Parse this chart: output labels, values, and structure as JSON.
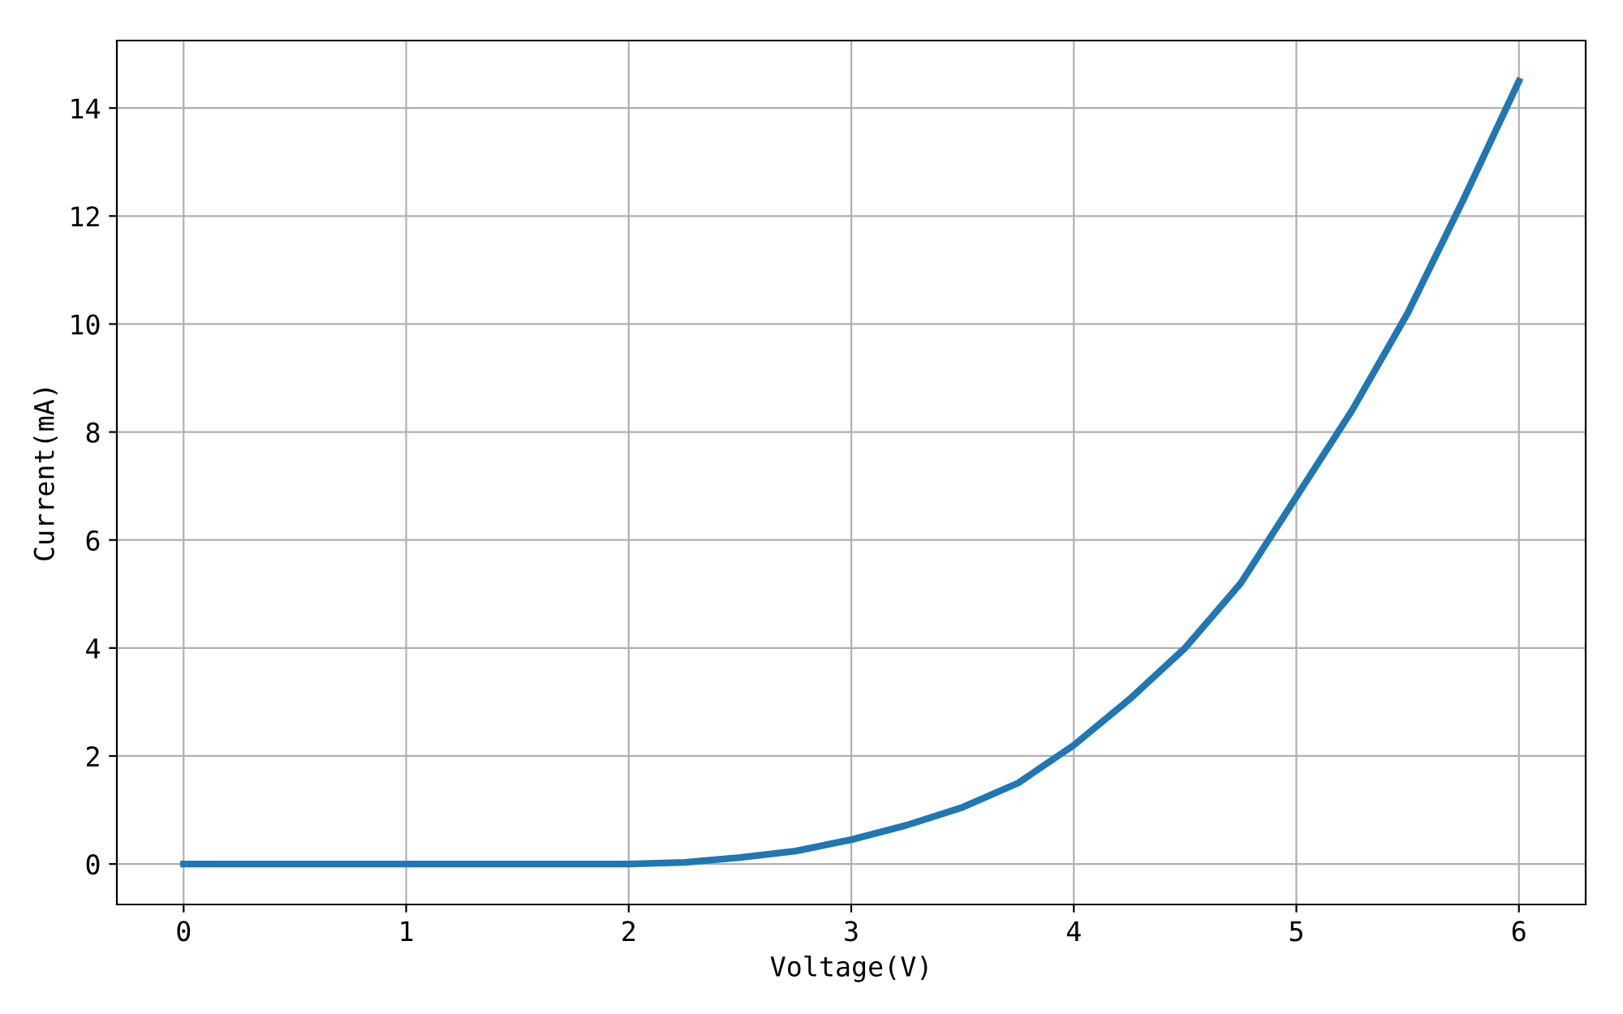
{
  "chart_data": {
    "type": "line",
    "xlabel": "Voltage(V)",
    "ylabel": "Current(mA)",
    "x": [
      0,
      0.5,
      1,
      1.5,
      2,
      2.25,
      2.5,
      2.75,
      3,
      3.25,
      3.5,
      3.75,
      4,
      4.25,
      4.5,
      4.75,
      5,
      5.25,
      5.5,
      5.75,
      6
    ],
    "series": [
      {
        "color": "#1f77b4",
        "values": [
          0,
          0,
          0,
          0,
          0,
          0.03,
          0.12,
          0.24,
          0.45,
          0.72,
          1.05,
          1.5,
          2.2,
          3.05,
          4.0,
          5.2,
          6.8,
          8.4,
          10.2,
          12.3,
          14.5
        ]
      }
    ],
    "xlim": [
      -0.3,
      6.3
    ],
    "ylim": [
      -0.75,
      15.25
    ],
    "xticks": [
      0,
      1,
      2,
      3,
      4,
      5,
      6
    ],
    "yticks": [
      0,
      2,
      4,
      6,
      8,
      10,
      12,
      14
    ],
    "grid": true,
    "marker": "none",
    "line_style": "solid"
  }
}
